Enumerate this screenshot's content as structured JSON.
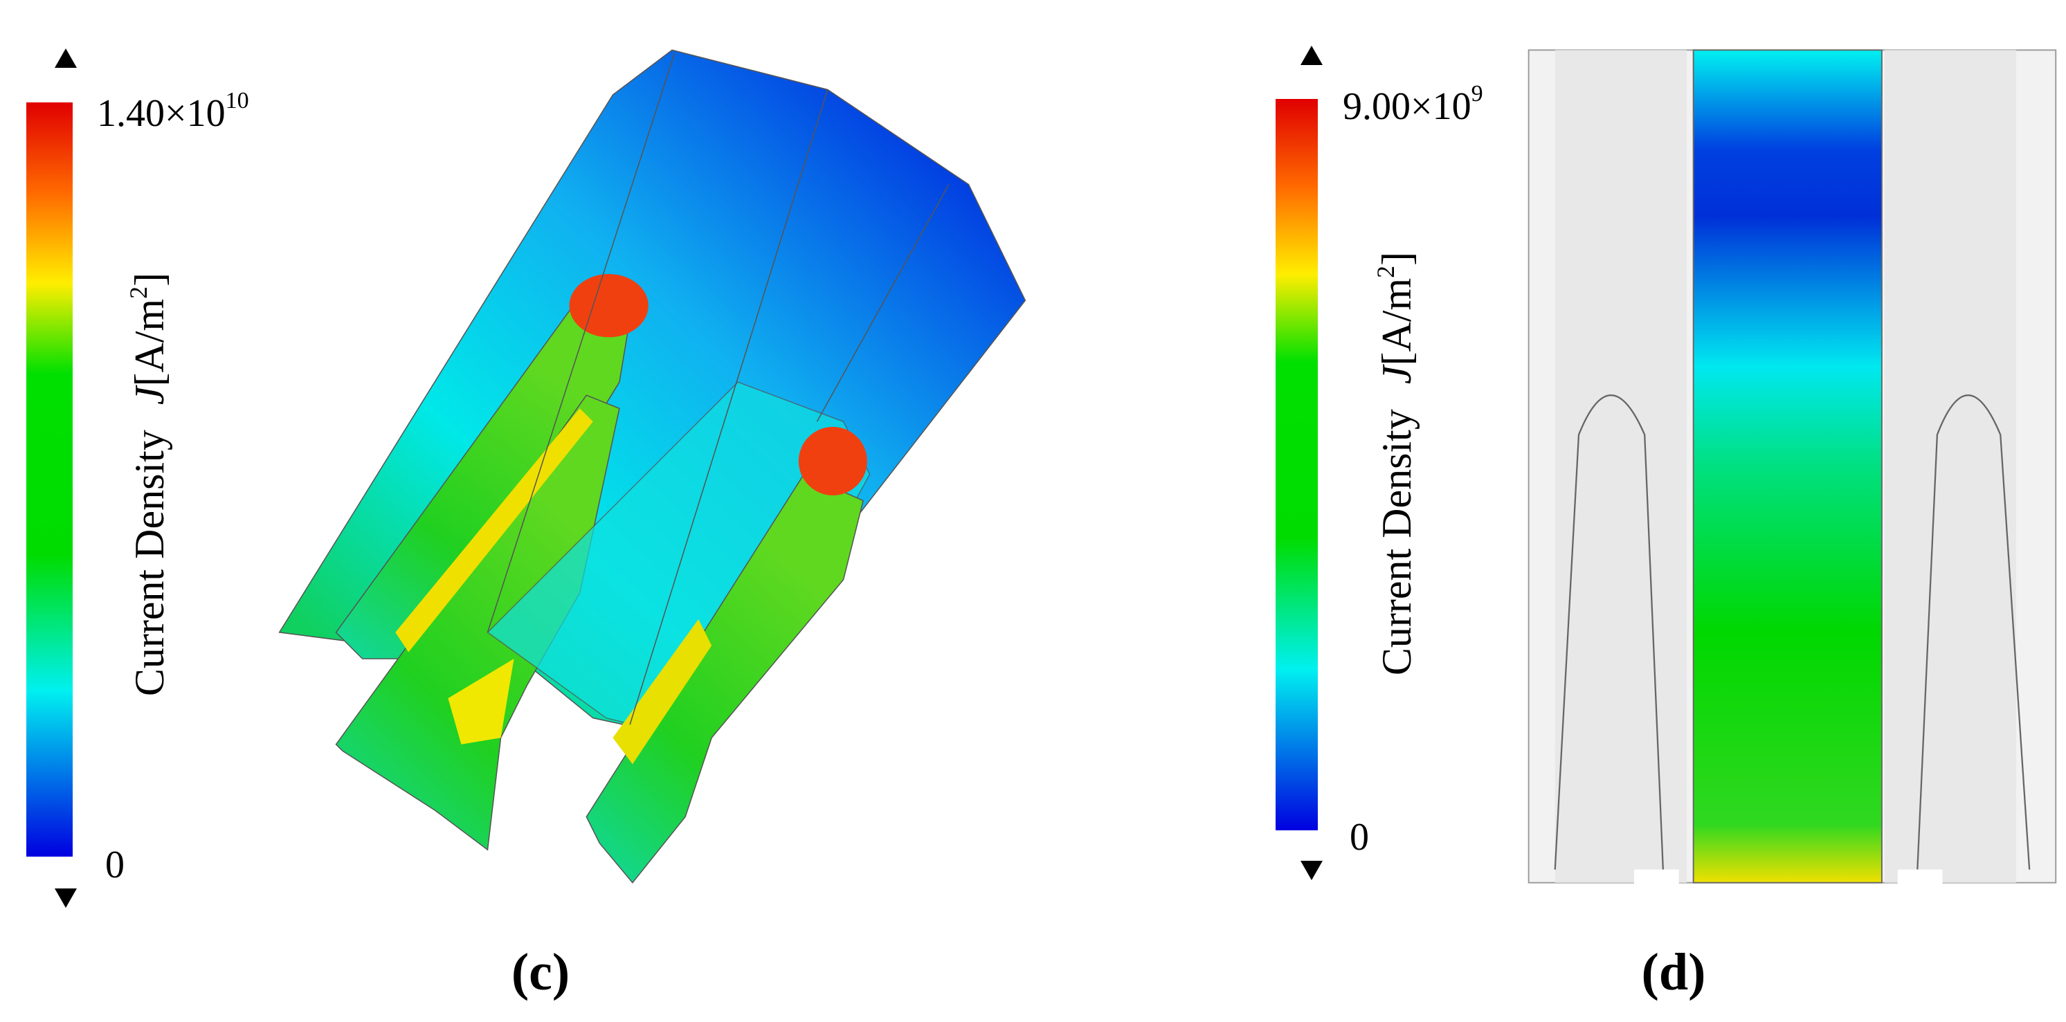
{
  "panels": [
    {
      "label": "(c)",
      "colorbar": {
        "max_mantissa": "1.40×10",
        "max_exponent": "10",
        "min_label": "0",
        "title": "Current Density",
        "symbol": "J",
        "unit": "[A/m",
        "unit_exponent": "2",
        "unit_close": "]"
      }
    },
    {
      "label": "(d)",
      "colorbar": {
        "max_mantissa": "9.00×10",
        "max_exponent": "9",
        "min_label": "0",
        "title": "Current Density",
        "symbol": "J",
        "unit": "[A/m",
        "unit_exponent": "2",
        "unit_close": "]"
      }
    }
  ]
}
